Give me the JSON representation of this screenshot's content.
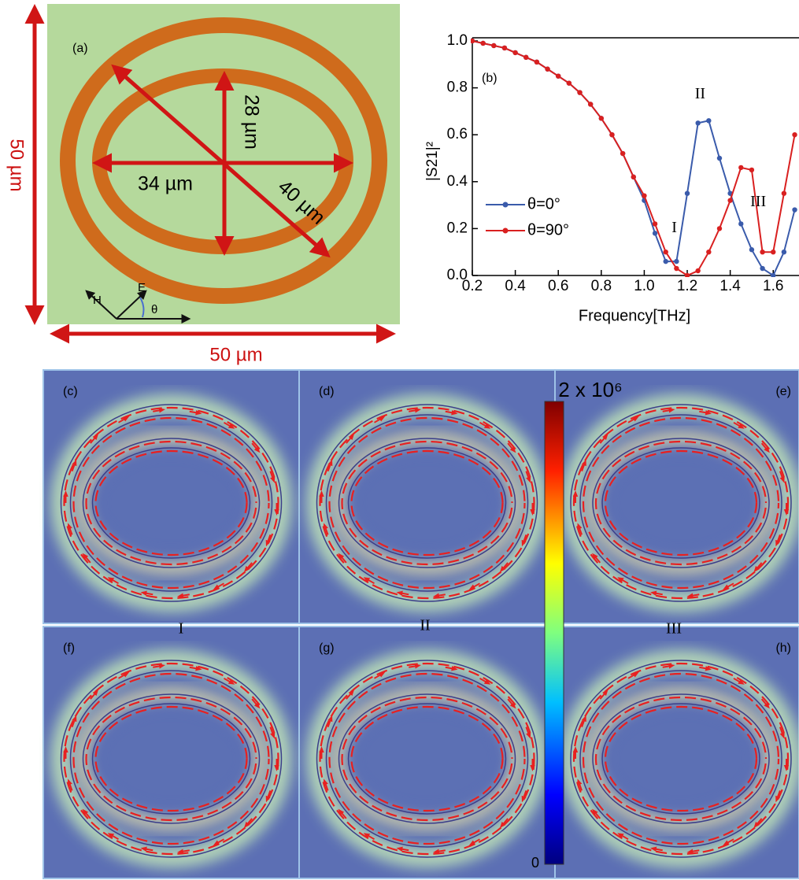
{
  "panel_a": {
    "label": "(a)",
    "width_label": "50 µm",
    "height_label": "50 µm",
    "dimensions": [
      "34 µm",
      "28 µm",
      "40 µm"
    ],
    "polarization": [
      "H",
      "E",
      "θ"
    ]
  },
  "chart_data": {
    "type": "line",
    "label": "(b)",
    "xlabel": "Frequency[THz]",
    "ylabel": "|S21|²",
    "x": [
      0.2,
      0.25,
      0.3,
      0.35,
      0.4,
      0.45,
      0.5,
      0.55,
      0.6,
      0.65,
      0.7,
      0.75,
      0.8,
      0.85,
      0.9,
      0.95,
      1.0,
      1.05,
      1.1,
      1.15,
      1.2,
      1.25,
      1.3,
      1.35,
      1.4,
      1.45,
      1.5,
      1.55,
      1.6,
      1.65,
      1.7
    ],
    "series": [
      {
        "name": "θ=0°",
        "color": "#3a5bab",
        "values": [
          1.0,
          0.99,
          0.98,
          0.97,
          0.95,
          0.93,
          0.91,
          0.88,
          0.85,
          0.82,
          0.78,
          0.73,
          0.67,
          0.6,
          0.52,
          0.42,
          0.32,
          0.18,
          0.06,
          0.06,
          0.35,
          0.65,
          0.66,
          0.5,
          0.35,
          0.22,
          0.11,
          0.03,
          0.0,
          0.1,
          0.28
        ]
      },
      {
        "name": "θ=90°",
        "color": "#d92020",
        "values": [
          1.0,
          0.99,
          0.98,
          0.97,
          0.95,
          0.93,
          0.91,
          0.88,
          0.85,
          0.82,
          0.78,
          0.73,
          0.67,
          0.6,
          0.52,
          0.42,
          0.34,
          0.22,
          0.1,
          0.03,
          0.0,
          0.02,
          0.1,
          0.2,
          0.32,
          0.46,
          0.45,
          0.1,
          0.1,
          0.35,
          0.6
        ]
      }
    ],
    "xlim": [
      0.2,
      1.72
    ],
    "xticks": [
      0.2,
      0.4,
      0.6,
      0.8,
      {
        "value": 1,
        "label": "1.0"
      },
      1.2,
      1.4,
      1.6
    ],
    "ylim": [
      0,
      1
    ],
    "yticks": [
      {
        "value": 0,
        "label": "0.0"
      },
      0.2,
      0.4,
      0.6,
      0.8,
      {
        "value": 1,
        "label": "1.0"
      }
    ],
    "annotations": [
      "I",
      "II",
      "III"
    ]
  },
  "field_maps": {
    "panels": [
      "(c)",
      "(d)",
      "(e)",
      "(f)",
      "(g)",
      "(h)"
    ],
    "modes": [
      "I",
      "II",
      "III"
    ],
    "colorbar_labels": [
      "2 x 10⁶",
      "0"
    ]
  }
}
